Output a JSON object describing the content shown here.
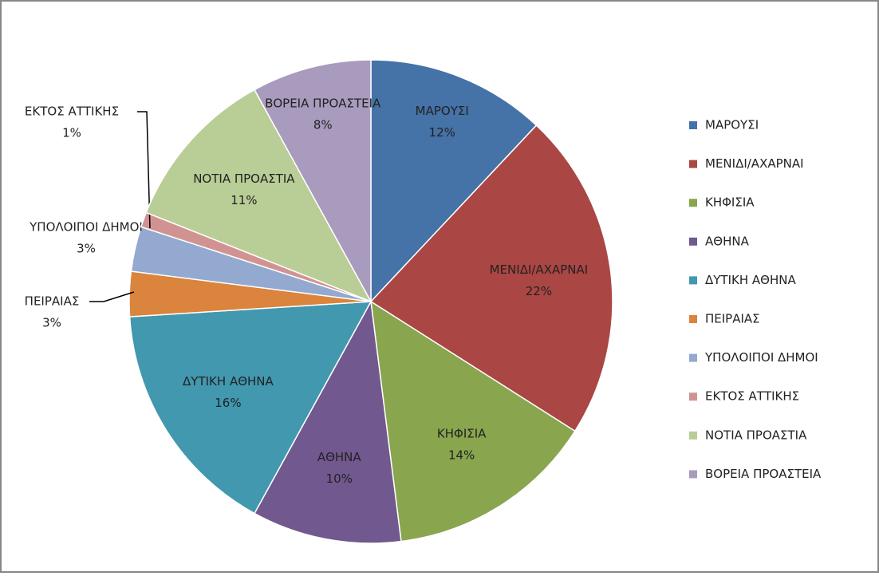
{
  "chart_data": {
    "type": "pie",
    "categories": [
      "ΜΑΡΟΥΣΙ",
      "ΜΕΝΙΔΙ/ΑΧΑΡΝΑΙ",
      "ΚΗΦΙΣΙΑ",
      "ΑΘΗΝΑ",
      "ΔΥΤΙΚΗ ΑΘΗΝΑ",
      "ΠΕΙΡΑΙΑΣ",
      "ΥΠΟΛΟΙΠΟΙ ΔΗΜΟΙ",
      "ΕΚΤΟΣ ΑΤΤΙΚΗΣ",
      "ΝΟΤΙΑ ΠΡΟΑΣΤΙΑ",
      "ΒΟΡΕΙΑ ΠΡΟΑΣΤΕΙΑ"
    ],
    "values": [
      12,
      22,
      14,
      10,
      16,
      3,
      3,
      1,
      11,
      8
    ],
    "value_labels": [
      "12%",
      "22%",
      "14%",
      "10%",
      "16%",
      "3%",
      "3%",
      "1%",
      "11%",
      "8%"
    ],
    "colors": [
      "#4572A7",
      "#AA4643",
      "#89A54E",
      "#71588F",
      "#4198AF",
      "#DB843D",
      "#93A9CF",
      "#D19392",
      "#B9CD96",
      "#A99BBD"
    ],
    "legend": "right"
  }
}
